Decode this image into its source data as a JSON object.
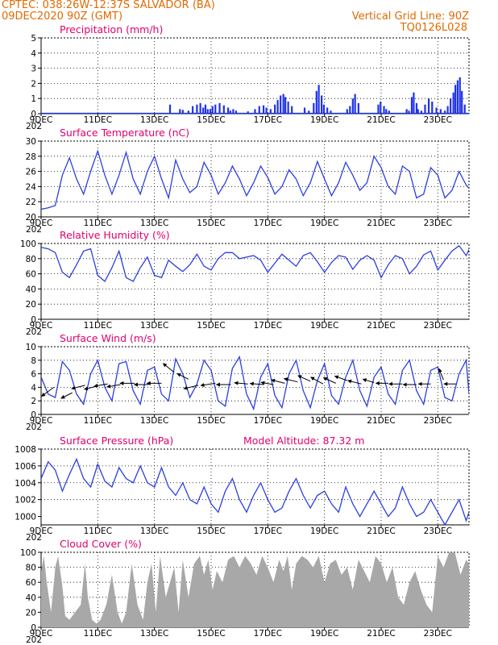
{
  "header": {
    "line1": "CPTEC:  038:26W-12:37S  SALVADOR (BA)",
    "line2": "09DEC2020 90Z (GMT)",
    "grid_note": "Vertical Grid Line: 90Z",
    "code": "TQ0126L028"
  },
  "colors": {
    "header": "#e06a00",
    "title": "#e0006e",
    "line": "#2b3fe0",
    "bar": "#1f33e8",
    "cloud": "#a8a8a8",
    "wind": "#000000"
  },
  "x_labels": [
    "9DEC",
    "11DEC",
    "13DEC",
    "15DEC",
    "17DEC",
    "19DEC",
    "21DEC",
    "23DEC"
  ],
  "year_fragment": "202",
  "chart_data": [
    {
      "id": "precip",
      "type": "bar",
      "title": "Precipitation (mm/h)",
      "ylim": [
        0,
        5
      ],
      "yticks": [
        "0",
        "1",
        "2",
        "3",
        "4",
        "5"
      ],
      "ytick_values": [
        0,
        1,
        2,
        3,
        4,
        5
      ],
      "x_start_day": 9,
      "x_end_day": 24.1,
      "x": [
        13.55,
        13.9,
        14.0,
        14.2,
        14.35,
        14.5,
        14.62,
        14.72,
        14.8,
        14.88,
        14.97,
        15.05,
        15.15,
        15.3,
        15.45,
        15.6,
        15.68,
        15.78,
        15.88,
        16.3,
        16.55,
        16.7,
        16.85,
        16.95,
        17.1,
        17.25,
        17.35,
        17.45,
        17.55,
        17.62,
        17.72,
        17.85,
        18.3,
        18.45,
        18.62,
        18.72,
        18.8,
        18.9,
        18.98,
        19.1,
        19.22,
        19.8,
        19.9,
        20.0,
        20.08,
        20.2,
        20.9,
        20.98,
        21.1,
        21.18,
        21.28,
        21.9,
        21.98,
        22.08,
        22.15,
        22.25,
        22.3,
        22.42,
        22.55,
        22.68,
        22.8,
        22.95,
        23.1,
        23.25,
        23.35,
        23.45,
        23.55,
        23.62,
        23.7,
        23.78,
        23.85,
        23.95
      ],
      "y": [
        0.6,
        0.3,
        0.25,
        0.2,
        0.5,
        0.6,
        0.7,
        0.4,
        0.6,
        0.3,
        0.3,
        0.5,
        0.6,
        0.7,
        0.55,
        0.4,
        0.2,
        0.3,
        0.2,
        0.15,
        0.3,
        0.5,
        0.55,
        0.4,
        0.3,
        0.6,
        0.9,
        1.2,
        1.3,
        1.1,
        0.8,
        0.5,
        0.4,
        0.2,
        0.7,
        1.5,
        1.9,
        1.2,
        0.6,
        0.4,
        0.2,
        0.3,
        0.5,
        1.0,
        1.3,
        0.7,
        0.6,
        0.8,
        0.5,
        0.3,
        0.2,
        0.3,
        0.2,
        1.1,
        1.4,
        0.7,
        0.3,
        0.2,
        0.6,
        1.0,
        0.8,
        0.4,
        0.3,
        0.2,
        0.5,
        1.0,
        1.4,
        1.9,
        2.2,
        2.4,
        1.5,
        0.6
      ]
    },
    {
      "id": "temp",
      "type": "line",
      "title": "Surface Temperature (nC)",
      "ylim": [
        20,
        30
      ],
      "yticks": [
        "20",
        "22",
        "24",
        "26",
        "28",
        "30"
      ],
      "ytick_values": [
        20,
        22,
        24,
        26,
        28,
        30
      ],
      "x_start_day": 9,
      "x_end_day": 24.1,
      "x": [
        9.0,
        9.25,
        9.5,
        9.75,
        10.0,
        10.25,
        10.5,
        10.75,
        11.0,
        11.25,
        11.5,
        11.75,
        12.0,
        12.25,
        12.5,
        12.75,
        13.0,
        13.25,
        13.5,
        13.75,
        14.0,
        14.25,
        14.5,
        14.75,
        15.0,
        15.25,
        15.5,
        15.75,
        16.0,
        16.25,
        16.5,
        16.75,
        17.0,
        17.25,
        17.5,
        17.75,
        18.0,
        18.25,
        18.5,
        18.75,
        19.0,
        19.25,
        19.5,
        19.75,
        20.0,
        20.25,
        20.5,
        20.75,
        21.0,
        21.25,
        21.5,
        21.75,
        22.0,
        22.25,
        22.5,
        22.75,
        23.0,
        23.25,
        23.5,
        23.75,
        24.0,
        24.1
      ],
      "y": [
        21.0,
        21.2,
        21.5,
        25.5,
        27.8,
        25.0,
        23.0,
        26.0,
        28.7,
        25.5,
        23.0,
        25.5,
        28.5,
        25.0,
        23.0,
        26.0,
        28.0,
        25.0,
        22.5,
        27.5,
        25.0,
        23.2,
        24.0,
        27.2,
        25.5,
        23.0,
        24.5,
        26.7,
        25.0,
        22.8,
        24.5,
        26.7,
        25.2,
        23.0,
        24.0,
        26.2,
        25.0,
        22.8,
        24.5,
        27.3,
        25.0,
        22.8,
        24.5,
        27.2,
        25.5,
        23.5,
        24.5,
        28.0,
        26.5,
        24.0,
        23.0,
        26.7,
        26.0,
        22.5,
        23.0,
        26.5,
        25.5,
        22.5,
        23.5,
        26.0,
        24.2,
        23.8
      ]
    },
    {
      "id": "rh",
      "type": "line",
      "title": "Relative Humidity (%)",
      "ylim": [
        0,
        100
      ],
      "yticks": [
        "0",
        "20",
        "40",
        "60",
        "80",
        "100"
      ],
      "ytick_values": [
        0,
        20,
        40,
        60,
        80,
        100
      ],
      "x_start_day": 9,
      "x_end_day": 24.1,
      "x": [
        9.0,
        9.25,
        9.5,
        9.75,
        10.0,
        10.25,
        10.5,
        10.75,
        11.0,
        11.25,
        11.5,
        11.75,
        12.0,
        12.25,
        12.5,
        12.75,
        13.0,
        13.25,
        13.5,
        13.75,
        14.0,
        14.25,
        14.5,
        14.75,
        15.0,
        15.25,
        15.5,
        15.75,
        16.0,
        16.25,
        16.5,
        16.75,
        17.0,
        17.25,
        17.5,
        17.75,
        18.0,
        18.25,
        18.5,
        18.75,
        19.0,
        19.25,
        19.5,
        19.75,
        20.0,
        20.25,
        20.5,
        20.75,
        21.0,
        21.25,
        21.5,
        21.75,
        22.0,
        22.25,
        22.5,
        22.75,
        23.0,
        23.25,
        23.5,
        23.75,
        24.0,
        24.1
      ],
      "y": [
        95,
        93,
        88,
        62,
        55,
        72,
        90,
        93,
        58,
        50,
        68,
        90,
        55,
        50,
        68,
        82,
        58,
        55,
        78,
        70,
        63,
        72,
        86,
        70,
        65,
        80,
        88,
        88,
        80,
        82,
        84,
        78,
        62,
        74,
        86,
        78,
        70,
        84,
        88,
        76,
        62,
        75,
        84,
        82,
        66,
        78,
        84,
        78,
        55,
        72,
        84,
        80,
        60,
        70,
        85,
        90,
        65,
        78,
        90,
        97,
        84,
        92
      ]
    },
    {
      "id": "wind",
      "type": "line",
      "title": "Surface Wind (m/s)",
      "ylim": [
        0,
        10
      ],
      "yticks": [
        "0",
        "2",
        "4",
        "6",
        "8",
        "10"
      ],
      "ytick_values": [
        0,
        2,
        4,
        6,
        8,
        10
      ],
      "x_start_day": 9,
      "x_end_day": 24.1,
      "x": [
        9.0,
        9.25,
        9.5,
        9.75,
        10.0,
        10.25,
        10.5,
        10.75,
        11.0,
        11.25,
        11.5,
        11.75,
        12.0,
        12.25,
        12.5,
        12.75,
        13.0,
        13.25,
        13.5,
        13.75,
        14.0,
        14.25,
        14.5,
        14.75,
        15.0,
        15.25,
        15.5,
        15.75,
        16.0,
        16.25,
        16.5,
        16.75,
        17.0,
        17.25,
        17.5,
        17.75,
        18.0,
        18.25,
        18.5,
        18.75,
        19.0,
        19.25,
        19.5,
        19.75,
        20.0,
        20.25,
        20.5,
        20.75,
        21.0,
        21.25,
        21.5,
        21.75,
        22.0,
        22.25,
        22.5,
        22.75,
        23.0,
        23.25,
        23.5,
        23.75,
        24.0,
        24.1
      ],
      "y": [
        5.5,
        3.0,
        2.5,
        7.8,
        6.5,
        3.0,
        1.5,
        6.0,
        8.0,
        4.0,
        2.0,
        7.5,
        7.8,
        3.5,
        1.5,
        6.5,
        7.0,
        3.0,
        2.0,
        8.2,
        6.0,
        2.5,
        4.5,
        8.0,
        6.5,
        2.0,
        1.2,
        6.8,
        8.5,
        3.0,
        0.8,
        5.5,
        7.5,
        2.8,
        1.0,
        6.0,
        8.0,
        3.5,
        1.0,
        5.0,
        7.5,
        2.8,
        1.5,
        5.5,
        8.0,
        3.5,
        1.2,
        5.5,
        7.0,
        3.0,
        1.5,
        6.5,
        8.0,
        3.5,
        1.5,
        6.5,
        7.0,
        2.5,
        2.0,
        6.0,
        8.0,
        3.0
      ],
      "arrows": {
        "x": [
          9.45,
          10.1,
          10.55,
          11.0,
          11.35,
          11.8,
          12.3,
          12.8,
          13.25,
          13.7,
          14.2,
          14.55,
          15.15,
          15.7,
          16.3,
          16.85,
          17.2,
          17.6,
          18.05,
          18.5,
          18.95,
          19.4,
          19.8,
          20.3,
          20.75,
          21.25,
          21.75,
          22.25,
          22.75,
          23.2,
          23.65
        ],
        "y": [
          4.0,
          3.2,
          4.3,
          4.2,
          4.5,
          4.4,
          4.6,
          4.4,
          4.6,
          6.2,
          5.2,
          4.3,
          4.6,
          4.4,
          4.5,
          4.4,
          4.4,
          4.6,
          4.8,
          4.9,
          4.5,
          4.6,
          5.0,
          4.5,
          4.7,
          4.6,
          4.5,
          4.4,
          4.5,
          5.1,
          4.5
        ],
        "u": [
          -1.1,
          -1.0,
          -1.2,
          -1.2,
          -1.2,
          -1.2,
          -1.3,
          -1.3,
          -1.3,
          -1.0,
          -1.0,
          -1.3,
          -1.3,
          -1.3,
          -1.2,
          -1.2,
          -1.1,
          -1.2,
          -1.2,
          -1.1,
          -1.1,
          -1.1,
          -1.1,
          -1.2,
          -1.0,
          -1.1,
          -1.2,
          -1.2,
          -1.1,
          -0.4,
          -1.1
        ],
        "v": [
          -0.8,
          -0.5,
          -0.3,
          -0.3,
          -0.2,
          -0.2,
          0.0,
          0.0,
          0.0,
          0.8,
          0.5,
          -0.3,
          -0.2,
          0.0,
          0.1,
          0.1,
          0.2,
          0.3,
          0.3,
          0.5,
          0.6,
          0.5,
          0.4,
          0.3,
          0.3,
          0.0,
          0.0,
          0.0,
          0.0,
          1.0,
          0.0
        ]
      }
    },
    {
      "id": "press",
      "type": "line",
      "title": "Surface Pressure (hPa)",
      "extra_label": "Model Altitude: 87.32 m",
      "ylim": [
        999,
        1008
      ],
      "yticks": [
        "1000",
        "1002",
        "1004",
        "1006",
        "1008"
      ],
      "ytick_values": [
        1000,
        1002,
        1004,
        1006,
        1008
      ],
      "x_start_day": 9,
      "x_end_day": 24.1,
      "x": [
        9.0,
        9.25,
        9.5,
        9.75,
        10.0,
        10.25,
        10.5,
        10.75,
        11.0,
        11.25,
        11.5,
        11.75,
        12.0,
        12.25,
        12.5,
        12.75,
        13.0,
        13.25,
        13.5,
        13.75,
        14.0,
        14.25,
        14.5,
        14.75,
        15.0,
        15.25,
        15.5,
        15.75,
        16.0,
        16.25,
        16.5,
        16.75,
        17.0,
        17.25,
        17.5,
        17.75,
        18.0,
        18.25,
        18.5,
        18.75,
        19.0,
        19.25,
        19.5,
        19.75,
        20.0,
        20.25,
        20.5,
        20.75,
        21.0,
        21.25,
        21.5,
        21.75,
        22.0,
        22.25,
        22.5,
        22.75,
        23.0,
        23.25,
        23.5,
        23.75,
        24.0,
        24.1
      ],
      "y": [
        1004.5,
        1006.5,
        1005.5,
        1003.0,
        1005.0,
        1006.8,
        1004.5,
        1003.5,
        1006.2,
        1004.2,
        1003.5,
        1005.8,
        1004.5,
        1004.0,
        1006.0,
        1004.0,
        1003.5,
        1005.8,
        1003.5,
        1002.5,
        1004.0,
        1002.0,
        1001.5,
        1003.5,
        1001.5,
        1000.5,
        1003.0,
        1004.5,
        1002.0,
        1000.5,
        1002.5,
        1004.0,
        1002.0,
        1000.5,
        1001.0,
        1003.0,
        1004.5,
        1002.5,
        1001.0,
        1002.5,
        1003.0,
        1001.5,
        1000.5,
        1003.5,
        1001.5,
        1000.0,
        1001.5,
        1003.0,
        1001.5,
        1000.0,
        1001.0,
        1003.5,
        1001.5,
        1000.0,
        1000.5,
        1002.0,
        1000.5,
        999.0,
        1000.5,
        1002.0,
        999.5,
        1000.5
      ]
    },
    {
      "id": "cloud",
      "type": "area",
      "title": "Cloud Cover (%)",
      "ylim": [
        0,
        100
      ],
      "yticks": [
        "0",
        "20",
        "40",
        "60",
        "80",
        "100"
      ],
      "ytick_values": [
        0,
        20,
        40,
        60,
        80,
        100
      ],
      "x_start_day": 9,
      "x_end_day": 24.1,
      "x": [
        9.0,
        9.1,
        9.2,
        9.35,
        9.5,
        9.6,
        9.75,
        9.85,
        10.0,
        10.2,
        10.4,
        10.55,
        10.65,
        10.8,
        10.95,
        11.1,
        11.3,
        11.5,
        11.7,
        11.85,
        12.0,
        12.2,
        12.4,
        12.6,
        12.75,
        12.9,
        13.05,
        13.2,
        13.4,
        13.55,
        13.7,
        13.85,
        14.0,
        14.2,
        14.4,
        14.6,
        14.75,
        14.9,
        15.05,
        15.2,
        15.4,
        15.6,
        15.8,
        16.0,
        16.2,
        16.4,
        16.6,
        16.8,
        17.0,
        17.2,
        17.4,
        17.55,
        17.7,
        17.85,
        18.0,
        18.2,
        18.4,
        18.6,
        18.8,
        19.0,
        19.2,
        19.4,
        19.6,
        19.8,
        20.0,
        20.2,
        20.4,
        20.6,
        20.8,
        21.0,
        21.2,
        21.4,
        21.6,
        21.8,
        22.0,
        22.2,
        22.4,
        22.6,
        22.8,
        23.0,
        23.2,
        23.4,
        23.6,
        23.8,
        24.0,
        24.1
      ],
      "y": [
        75,
        95,
        60,
        20,
        80,
        95,
        55,
        15,
        10,
        20,
        30,
        85,
        40,
        10,
        5,
        10,
        30,
        70,
        20,
        5,
        20,
        85,
        30,
        10,
        60,
        85,
        20,
        95,
        40,
        60,
        80,
        20,
        90,
        40,
        85,
        95,
        70,
        90,
        50,
        75,
        60,
        90,
        95,
        80,
        95,
        85,
        70,
        95,
        80,
        60,
        90,
        75,
        95,
        50,
        85,
        95,
        90,
        80,
        95,
        60,
        85,
        90,
        70,
        80,
        50,
        90,
        75,
        60,
        95,
        85,
        60,
        80,
        40,
        30,
        60,
        75,
        50,
        30,
        20,
        95,
        80,
        100,
        100,
        70,
        90,
        85
      ]
    }
  ]
}
